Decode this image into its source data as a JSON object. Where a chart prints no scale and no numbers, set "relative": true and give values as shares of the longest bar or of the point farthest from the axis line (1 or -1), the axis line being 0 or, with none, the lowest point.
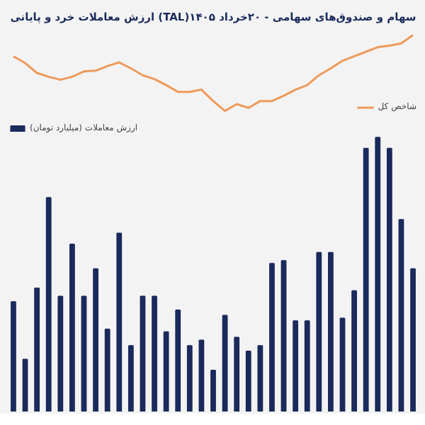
{
  "chart_data": [
    {
      "type": "line",
      "title": "ارزش معاملات خرد و پایانی (TAL)سهام و صندوق‌های سهامی - ۲۰خرداد ۱۴۰۵",
      "relative": true,
      "legend": "bottom right",
      "grid": false,
      "categories": [
        null,
        null,
        null,
        null,
        null,
        null,
        null,
        null,
        null,
        null,
        null,
        null,
        null,
        null,
        null,
        null,
        null,
        null,
        null,
        null,
        null,
        null,
        null,
        null,
        null,
        null,
        null,
        null,
        null,
        null,
        null,
        null,
        null,
        null,
        null
      ],
      "series": [
        {
          "name": "شاخص کل",
          "color": "#ee9a5a",
          "values": [
            0.72,
            0.63,
            0.5,
            0.45,
            0.41,
            0.45,
            0.52,
            0.53,
            0.59,
            0.64,
            0.56,
            0.47,
            0.42,
            0.34,
            0.25,
            0.25,
            0.28,
            0.13,
            0,
            0.09,
            0.04,
            0.13,
            0.13,
            0.2,
            0.28,
            0.34,
            0.47,
            0.56,
            0.66,
            0.72,
            0.78,
            0.84,
            0.86,
            0.89,
            1
          ]
        }
      ]
    },
    {
      "type": "bar",
      "relative": true,
      "legend": "top left",
      "grid": false,
      "categories": [
        null,
        null,
        null,
        null,
        null,
        null,
        null,
        null,
        null,
        null,
        null,
        null,
        null,
        null,
        null,
        null,
        null,
        null,
        null,
        null,
        null,
        null,
        null,
        null,
        null,
        null,
        null,
        null,
        null,
        null,
        null,
        null,
        null,
        null,
        null
      ],
      "series": [
        {
          "name": "ارزش معاملات (میلیارد تومان)",
          "color": "#1b2a5c",
          "values": [
            0.4,
            0.19,
            0.45,
            0.78,
            0.42,
            0.61,
            0.42,
            0.52,
            0.3,
            0.65,
            0.24,
            0.42,
            0.42,
            0.29,
            0.37,
            0.24,
            0.26,
            0.15,
            0.35,
            0.27,
            0.22,
            0.24,
            0.54,
            0.55,
            0.33,
            0.33,
            0.58,
            0.58,
            0.34,
            0.44,
            0.96,
            1.0,
            0.96,
            0.7,
            0.52
          ]
        }
      ]
    }
  ]
}
